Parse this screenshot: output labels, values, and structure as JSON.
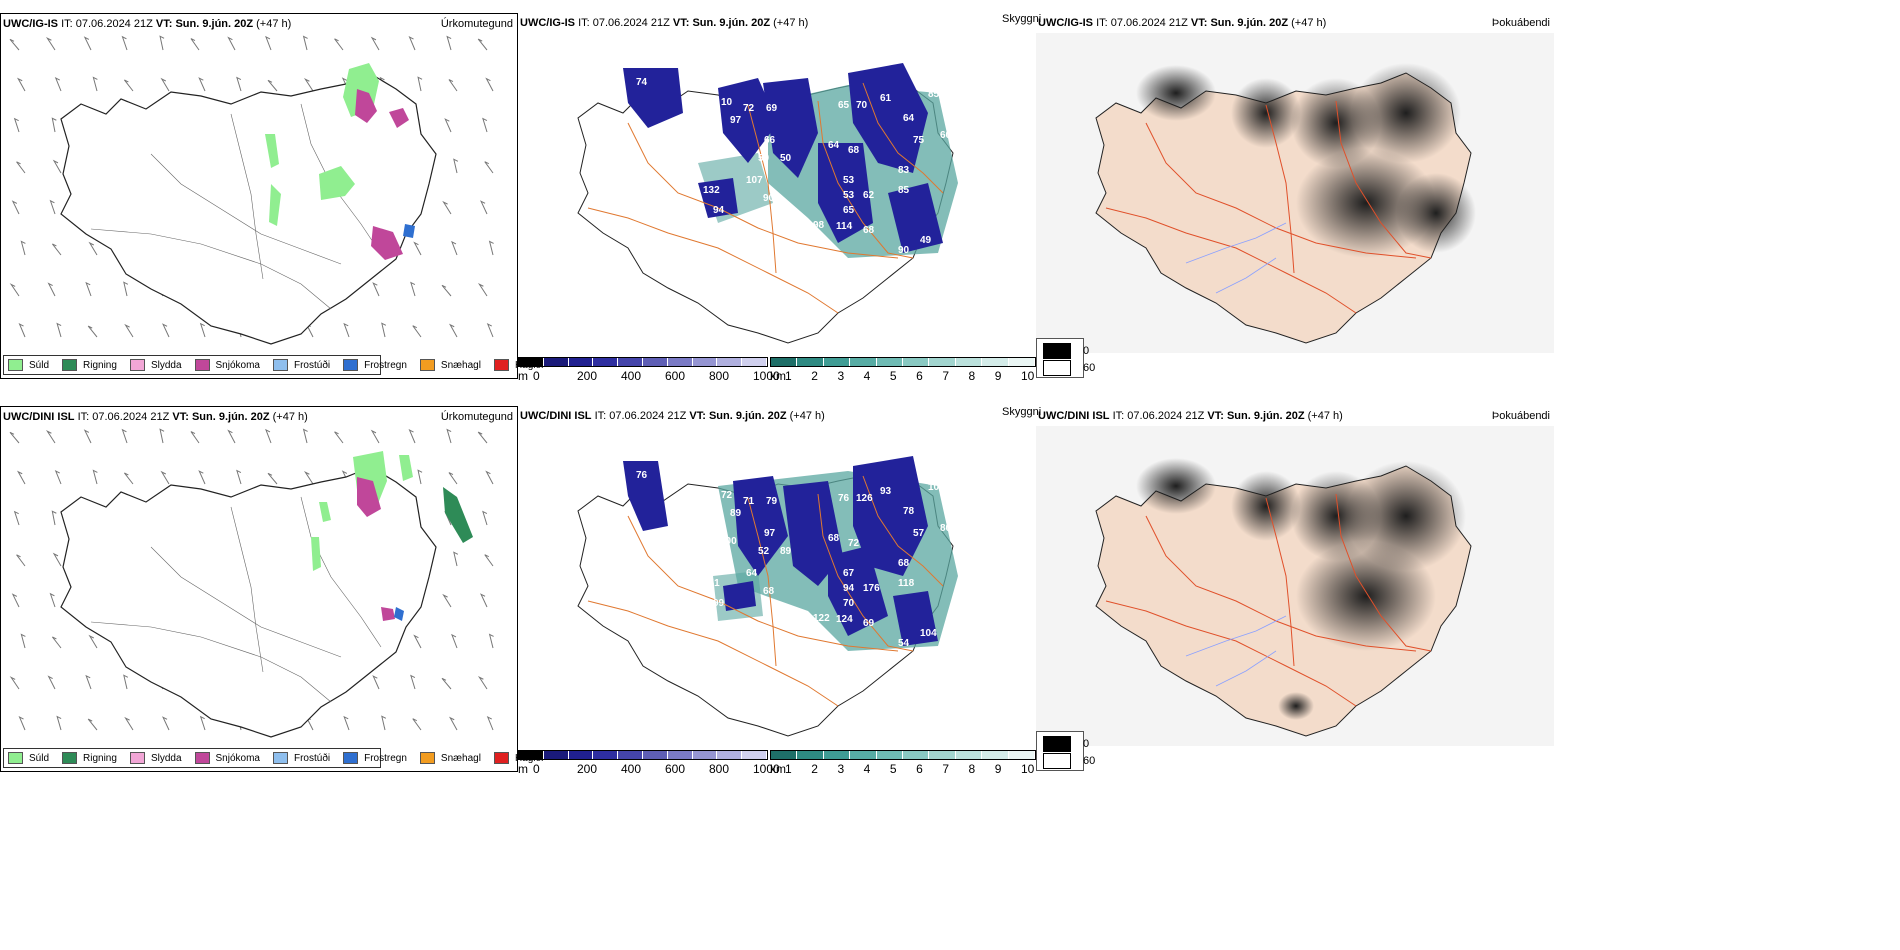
{
  "rows": [
    {
      "model": "UWC/IG-IS",
      "it_label": "IT:",
      "it_value": "07.06.2024 21Z",
      "vt_label": "VT:",
      "vt_value": "Sun. 9.jún. 20Z",
      "lead": "(+47 h)",
      "precip_title": "Úrkomutegund",
      "vis_title": "Skyggni",
      "fog_title": "Þokuábendi",
      "cloud_labels": [
        "74",
        "10",
        "72",
        "69",
        "97",
        "65",
        "70",
        "61",
        "85",
        "64",
        "60",
        "66",
        "75",
        "30",
        "50",
        "50",
        "64",
        "68",
        "53",
        "83",
        "107",
        "53",
        "62",
        "85",
        "132",
        "90",
        "65",
        "94",
        "98",
        "114",
        "68",
        "49",
        "90"
      ]
    },
    {
      "model": "UWC/DINI ISL",
      "it_label": "IT:",
      "it_value": "07.06.2024 21Z",
      "vt_label": "VT:",
      "vt_value": "Sun. 9.jún. 20Z",
      "lead": "(+47 h)",
      "precip_title": "Úrkomutegund",
      "vis_title": "Skyggni",
      "fog_title": "Þokuábendi",
      "cloud_labels": [
        "76",
        "72",
        "71",
        "79",
        "89",
        "76",
        "126",
        "93",
        "108",
        "78",
        "80",
        "97",
        "57",
        "100",
        "52",
        "89",
        "68",
        "72",
        "67",
        "68",
        "64",
        "94",
        "176",
        "118",
        "351",
        "68",
        "70",
        "99",
        "122",
        "124",
        "69",
        "104",
        "54"
      ]
    }
  ],
  "precip_legend": [
    {
      "label": "Súld",
      "color": "#90ee90"
    },
    {
      "label": "Rigning",
      "color": "#2e8b57"
    },
    {
      "label": "Slydda",
      "color": "#f2a6d6"
    },
    {
      "label": "Snjókoma",
      "color": "#c0479a"
    },
    {
      "label": "Frostúði",
      "color": "#8fbfee"
    },
    {
      "label": "Frostregn",
      "color": "#2f6fd0"
    },
    {
      "label": "Snæhagl",
      "color": "#f29c20"
    },
    {
      "label": "Haglél",
      "color": "#e02020"
    }
  ],
  "cloud_base_scale": {
    "unit": "m",
    "ticks": [
      "0",
      "200",
      "400",
      "600",
      "800",
      "1000"
    ],
    "colors": [
      "#000000",
      "#1a1a7a",
      "#202090",
      "#2e2ea0",
      "#4444aa",
      "#5e5eb5",
      "#7a7ac5",
      "#9595d2",
      "#b0b0df",
      "#d0d0ee"
    ]
  },
  "visibility_scale": {
    "unit": "km",
    "ticks": [
      "1",
      "2",
      "3",
      "4",
      "5",
      "6",
      "7",
      "8",
      "9",
      "10"
    ],
    "colors": [
      "#1e6f68",
      "#2e8a82",
      "#3f9c94",
      "#57aca4",
      "#6fbbb4",
      "#89c9c2",
      "#a2d5cf",
      "#bbe1dc",
      "#d4ece9",
      "#eaf6f4"
    ]
  },
  "fog_legend": [
    {
      "value": "0",
      "color": "#000000"
    },
    {
      "value": "60",
      "color": "#ffffff"
    }
  ],
  "colors": {
    "road": "#e07830",
    "coast": "#222222",
    "cloud_blue": "#22229a",
    "vis_teal": "#5aa7a0",
    "land_fill": "#f3dccb",
    "fog_dark": "#2a2a2a"
  }
}
